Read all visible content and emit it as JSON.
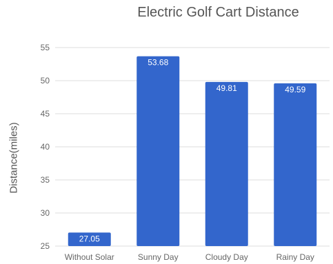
{
  "chart_data": {
    "type": "bar",
    "title": "Electric Golf Cart Distance",
    "xlabel": "",
    "ylabel": "Distance(miles)",
    "categories": [
      "Without Solar",
      "Sunny Day",
      "Cloudy Day",
      "Rainy Day"
    ],
    "values": [
      27.05,
      53.68,
      49.81,
      49.59
    ],
    "value_labels": [
      "27.05",
      "53.68",
      "49.81",
      "49.59"
    ],
    "ylim": [
      25,
      55
    ],
    "yticks": [
      25,
      30,
      35,
      40,
      45,
      50,
      55
    ],
    "grid": true,
    "legend": "none",
    "bar_color": "#3366cc",
    "grid_color": "#dddddd"
  }
}
